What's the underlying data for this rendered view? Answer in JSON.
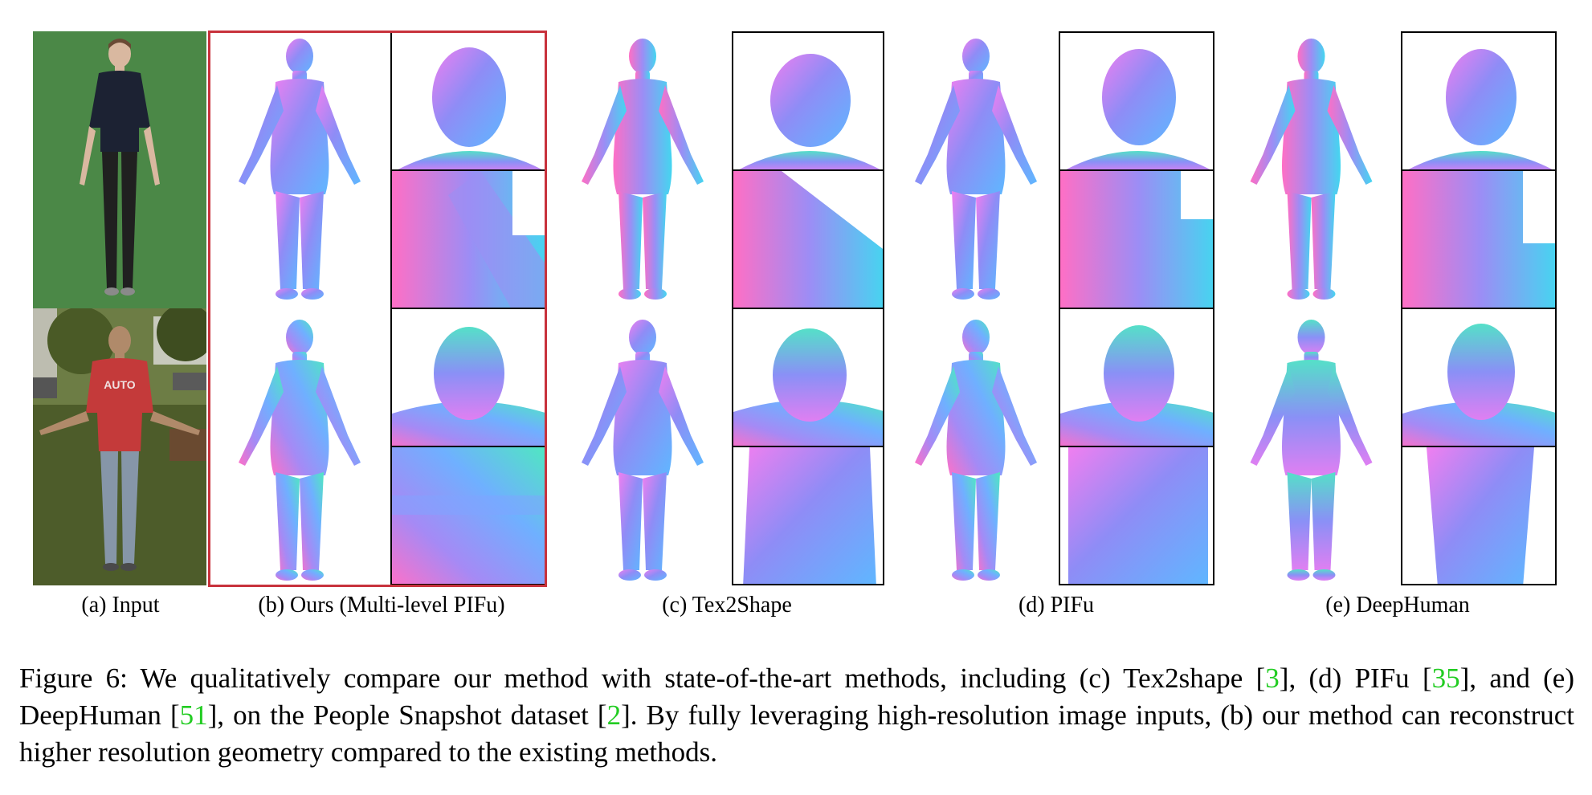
{
  "figure": {
    "labels": {
      "input": "(a) Input",
      "ours": "(b) Ours (Multi-level PIFu)",
      "tex2shape": "(c) Tex2Shape",
      "pifu": "(d) PIFu",
      "deephuman": "(e) DeepHuman"
    },
    "shirt_text": "AUTO"
  },
  "caption": {
    "part1": "Figure 6: We qualitatively compare our method with state-of-the-art methods, including (c) Tex2shape [",
    "cite1": "3",
    "part2": "], (d) PIFu [",
    "cite2": "35",
    "part3": "], and (e) DeepHuman [",
    "cite3": "51",
    "part4": "], on the People Snapshot dataset [",
    "cite4": "2",
    "part5": "]. By fully leveraging high-resolution image inputs, (b) our method can reconstruct higher resolution geometry compared to the existing methods."
  },
  "colors": {
    "highlight_border": "#c8323c",
    "citation": "#22cc22",
    "green_screen": "#4e8a4a"
  }
}
